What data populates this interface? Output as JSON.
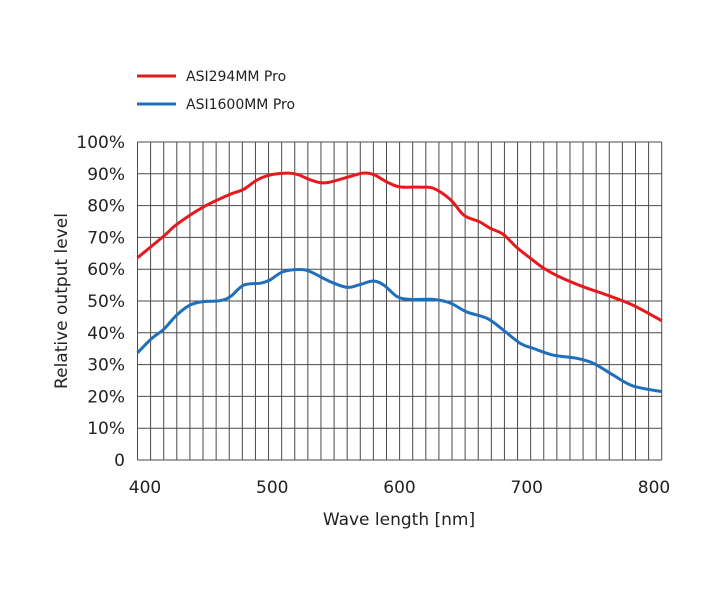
{
  "chart_data": {
    "type": "line",
    "title": "",
    "xlabel": "Wave length [nm]",
    "ylabel": "Relative output level",
    "xlim": [
      400,
      800
    ],
    "ylim": [
      0,
      100
    ],
    "x_ticks": [
      "400",
      "500",
      "600",
      "700",
      "800"
    ],
    "x_tick_values": [
      400,
      500,
      600,
      700,
      800
    ],
    "y_ticks": [
      "0",
      "10%",
      "20%",
      "30%",
      "40%",
      "50%",
      "60%",
      "70%",
      "80%",
      "90%",
      "100%"
    ],
    "y_tick_values": [
      0,
      10,
      20,
      30,
      40,
      50,
      60,
      70,
      80,
      90,
      100
    ],
    "grid": true,
    "grid_x_step": 10,
    "grid_y_step": 10,
    "legend_position": "top-left",
    "series": [
      {
        "name": "ASI294MM Pro",
        "color": "#e8191c",
        "x": [
          400,
          420,
          430,
          450,
          471,
          481,
          491,
          501,
          514,
          522,
          534,
          544,
          560,
          572,
          580,
          590,
          600,
          616,
          626,
          639,
          649,
          661,
          669,
          679,
          689,
          700,
          710,
          722,
          740,
          758,
          778,
          800
        ],
        "y": [
          63.6,
          70.4,
          74.1,
          79.5,
          83.6,
          85.1,
          88.0,
          89.6,
          90.2,
          89.8,
          87.8,
          87.2,
          88.9,
          90.2,
          89.8,
          87.5,
          85.9,
          85.8,
          85.4,
          81.8,
          77.0,
          74.9,
          72.9,
          71.0,
          67.0,
          63.4,
          60.3,
          57.6,
          54.5,
          51.9,
          48.7,
          43.8
        ]
      },
      {
        "name": "ASI1600MM Pro",
        "color": "#1f6fba",
        "x": [
          400,
          411,
          420,
          430,
          440,
          450,
          463,
          471,
          481,
          494,
          501,
          511,
          524,
          532,
          547,
          560,
          570,
          580,
          588,
          598,
          608,
          626,
          639,
          651,
          667,
          679,
          692,
          702,
          717,
          735,
          748,
          763,
          778,
          800
        ],
        "y": [
          33.7,
          38.3,
          41.1,
          45.6,
          48.7,
          49.8,
          50.1,
          51.4,
          55.0,
          55.6,
          56.6,
          59.2,
          59.9,
          59.2,
          56.1,
          54.3,
          55.2,
          56.3,
          55.0,
          51.4,
          50.5,
          50.5,
          49.3,
          46.6,
          44.5,
          40.9,
          36.7,
          35.1,
          33.0,
          32.0,
          30.4,
          26.7,
          23.3,
          21.5
        ]
      }
    ]
  }
}
